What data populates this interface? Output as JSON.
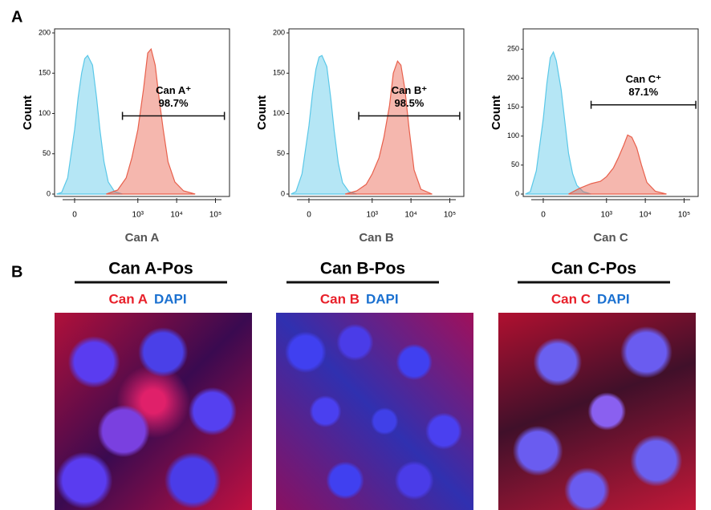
{
  "panel_labels": [
    "A",
    "B"
  ],
  "chart_data": [
    {
      "type": "area",
      "xlabel": "Can A",
      "ylabel": "Count",
      "xscale": "biexponential",
      "xlim": [
        -70,
        230000
      ],
      "xticks": [
        0,
        {
          "value": 1000,
          "label": "10³"
        },
        {
          "value": 10000,
          "label": "10⁴"
        },
        {
          "value": 100000,
          "label": "10⁵"
        }
      ],
      "ylim": [
        0,
        205
      ],
      "yticks": [
        0,
        50,
        100,
        150,
        200
      ],
      "series": [
        {
          "color": "#5bc8e8",
          "x": [
            -60,
            -40,
            -20,
            0,
            10,
            20,
            30,
            40,
            60,
            80,
            100,
            130,
            170,
            250,
            400
          ],
          "values": [
            0,
            2,
            20,
            80,
            120,
            150,
            168,
            172,
            160,
            120,
            80,
            40,
            15,
            3,
            0
          ]
        },
        {
          "color": "#e8604c",
          "x": [
            150,
            300,
            500,
            700,
            1000,
            1400,
            1800,
            2200,
            2800,
            3500,
            4500,
            6000,
            9000,
            15000,
            30000
          ],
          "values": [
            0,
            5,
            20,
            45,
            80,
            130,
            175,
            180,
            160,
            120,
            80,
            40,
            15,
            4,
            0
          ]
        }
      ],
      "gate": {
        "label": "Can A⁺",
        "annotation": "98.7%",
        "range": [
          400,
          170000
        ],
        "level": 97
      }
    },
    {
      "type": "area",
      "xlabel": "Can B",
      "ylabel": "Count",
      "xscale": "biexponential",
      "xlim": [
        -70,
        230000
      ],
      "xticks": [
        0,
        {
          "value": 1000,
          "label": "10³"
        },
        {
          "value": 10000,
          "label": "10⁴"
        },
        {
          "value": 100000,
          "label": "10⁵"
        }
      ],
      "ylim": [
        0,
        205
      ],
      "yticks": [
        0,
        50,
        100,
        150,
        200
      ],
      "series": [
        {
          "color": "#5bc8e8",
          "x": [
            -60,
            -40,
            -20,
            0,
            10,
            20,
            30,
            40,
            60,
            80,
            100,
            130,
            170,
            250,
            400
          ],
          "values": [
            0,
            3,
            25,
            85,
            125,
            155,
            170,
            172,
            158,
            118,
            78,
            38,
            14,
            3,
            0
          ]
        },
        {
          "color": "#e8604c",
          "x": [
            200,
            400,
            700,
            1000,
            1500,
            2000,
            2800,
            3500,
            4500,
            5500,
            7000,
            9000,
            12000,
            18000,
            35000
          ],
          "values": [
            0,
            4,
            12,
            25,
            45,
            70,
            110,
            150,
            165,
            160,
            130,
            80,
            30,
            6,
            0
          ]
        }
      ],
      "gate": {
        "label": "Can B⁺",
        "annotation": "98.5%",
        "range": [
          450,
          180000
        ],
        "level": 97
      }
    },
    {
      "type": "area",
      "xlabel": "Can C",
      "ylabel": "Count",
      "xscale": "biexponential",
      "xlim": [
        -70,
        230000
      ],
      "xticks": [
        0,
        {
          "value": 1000,
          "label": "10³"
        },
        {
          "value": 10000,
          "label": "10⁴"
        },
        {
          "value": 100000,
          "label": "10⁵"
        }
      ],
      "ylim": [
        0,
        285
      ],
      "yticks": [
        0,
        50,
        100,
        150,
        200,
        250
      ],
      "series": [
        {
          "color": "#5bc8e8",
          "x": [
            -60,
            -40,
            -20,
            0,
            10,
            20,
            30,
            40,
            60,
            80,
            100,
            130,
            170,
            250,
            400
          ],
          "values": [
            0,
            4,
            40,
            130,
            190,
            235,
            245,
            230,
            180,
            120,
            70,
            35,
            15,
            4,
            0
          ]
        },
        {
          "color": "#e8604c",
          "x": [
            100,
            200,
            400,
            700,
            1000,
            1500,
            2000,
            2800,
            3500,
            4500,
            6000,
            8000,
            11000,
            18000,
            35000
          ],
          "values": [
            0,
            10,
            18,
            22,
            30,
            45,
            62,
            85,
            102,
            98,
            80,
            50,
            20,
            5,
            0
          ]
        }
      ],
      "gate": {
        "label": "Can C⁺",
        "annotation": "87.1%",
        "range": [
          400,
          200000
        ],
        "level": 154
      }
    }
  ],
  "images": [
    {
      "title": "Can A-Pos",
      "stain": "Can A",
      "counterstain": "DAPI"
    },
    {
      "title": "Can B-Pos",
      "stain": "Can B",
      "counterstain": "DAPI"
    },
    {
      "title": "Can C-Pos",
      "stain": "Can C",
      "counterstain": "DAPI"
    }
  ]
}
